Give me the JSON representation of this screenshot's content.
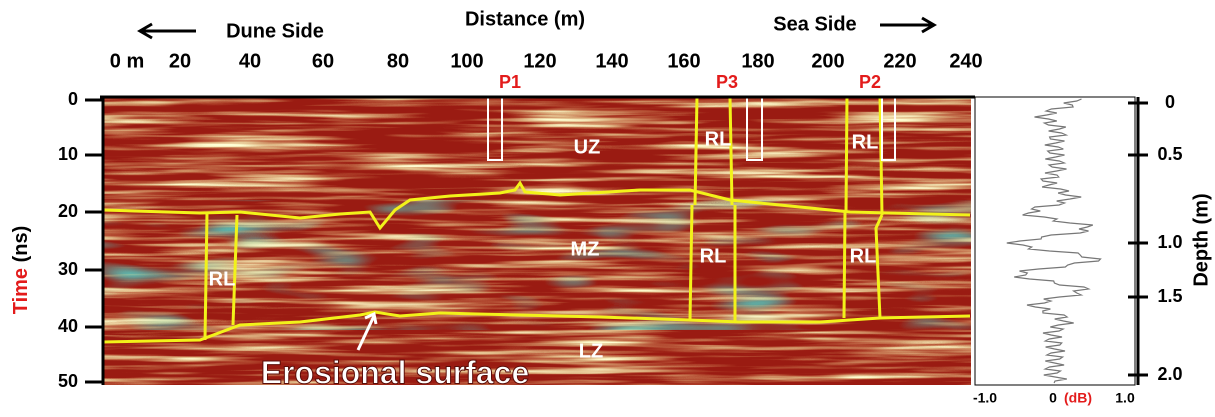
{
  "title": "Distance (m)",
  "direction_labels": {
    "left": "Dune Side",
    "right": "Sea Side"
  },
  "distance_ticks": [
    "0 m",
    "20",
    "40",
    "60",
    "80",
    "100",
    "120",
    "140",
    "160",
    "180",
    "200",
    "220",
    "240"
  ],
  "time_axis": {
    "label_time": "Time",
    "label_unit": "(ns)",
    "ticks": [
      "0",
      "10",
      "20",
      "30",
      "40",
      "50"
    ]
  },
  "depth_axis": {
    "label": "Depth (m)",
    "ticks": [
      "0",
      "0.5",
      "1.0",
      "1.5",
      "2.0"
    ]
  },
  "trace_axis": {
    "ticks": [
      "-1.0",
      "0",
      "1.0"
    ],
    "unit": "(dB)"
  },
  "pits": [
    "P1",
    "P3",
    "P2"
  ],
  "zones": [
    "UZ",
    "MZ",
    "LZ"
  ],
  "rl_labels": [
    "RL",
    "RL",
    "RL",
    "RL",
    "RL"
  ],
  "erosional_label": "Erosional surface"
}
